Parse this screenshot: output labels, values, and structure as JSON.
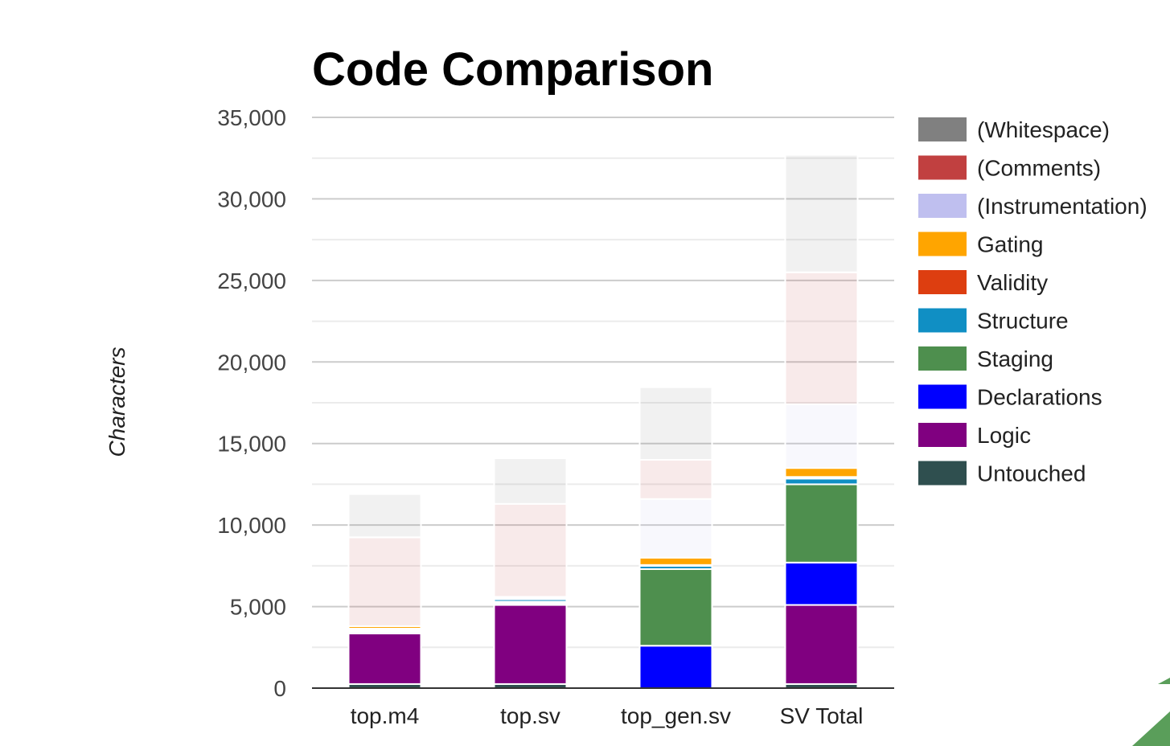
{
  "chart_data": {
    "type": "bar",
    "stacked": true,
    "title": "Code Comparison",
    "xlabel": "",
    "ylabel": "Characters",
    "ylim": [
      0,
      35000
    ],
    "yticks": [
      0,
      5000,
      10000,
      15000,
      20000,
      25000,
      30000,
      35000
    ],
    "ytick_labels": [
      "0",
      "5,000",
      "10,000",
      "15,000",
      "20,000",
      "25,000",
      "30,000",
      "35,000"
    ],
    "grid": true,
    "legend_position": "right",
    "categories": [
      "top.m4",
      "top.sv",
      "top_gen.sv",
      "SV Total"
    ],
    "series": [
      {
        "name": "Untouched",
        "color": "#2f4f4f",
        "faded": false,
        "values": [
          250,
          250,
          0,
          250
        ]
      },
      {
        "name": "Logic",
        "color": "#800080",
        "faded": false,
        "values": [
          3100,
          4850,
          0,
          4850
        ]
      },
      {
        "name": "Declarations",
        "color": "#0000ff",
        "faded": false,
        "values": [
          100,
          100,
          2600,
          2600
        ]
      },
      {
        "name": "Staging",
        "color": "#4e8f4e",
        "faded": false,
        "values": [
          50,
          100,
          4700,
          4800
        ]
      },
      {
        "name": "Structure",
        "color": "#108fc4",
        "faded": false,
        "values": [
          100,
          150,
          200,
          350
        ]
      },
      {
        "name": "Validity",
        "color": "#dd3e10",
        "faded": false,
        "values": [
          50,
          50,
          50,
          100
        ]
      },
      {
        "name": "Gating",
        "color": "#ffa500",
        "faded": false,
        "values": [
          150,
          100,
          450,
          550
        ]
      },
      {
        "name": "(Instrumentation)",
        "color": "#bfbfef",
        "faded": true,
        "values": [
          0,
          0,
          3600,
          3900
        ]
      },
      {
        "name": "(Comments)",
        "color": "#c14040",
        "faded": true,
        "values": [
          5450,
          5700,
          2400,
          8100
        ]
      },
      {
        "name": "(Whitespace)",
        "color": "#808080",
        "faded": true,
        "values": [
          2650,
          2800,
          4450,
          7200
        ]
      }
    ],
    "legend_order": [
      "(Whitespace)",
      "(Comments)",
      "(Instrumentation)",
      "Gating",
      "Validity",
      "Structure",
      "Staging",
      "Declarations",
      "Logic",
      "Untouched"
    ]
  }
}
